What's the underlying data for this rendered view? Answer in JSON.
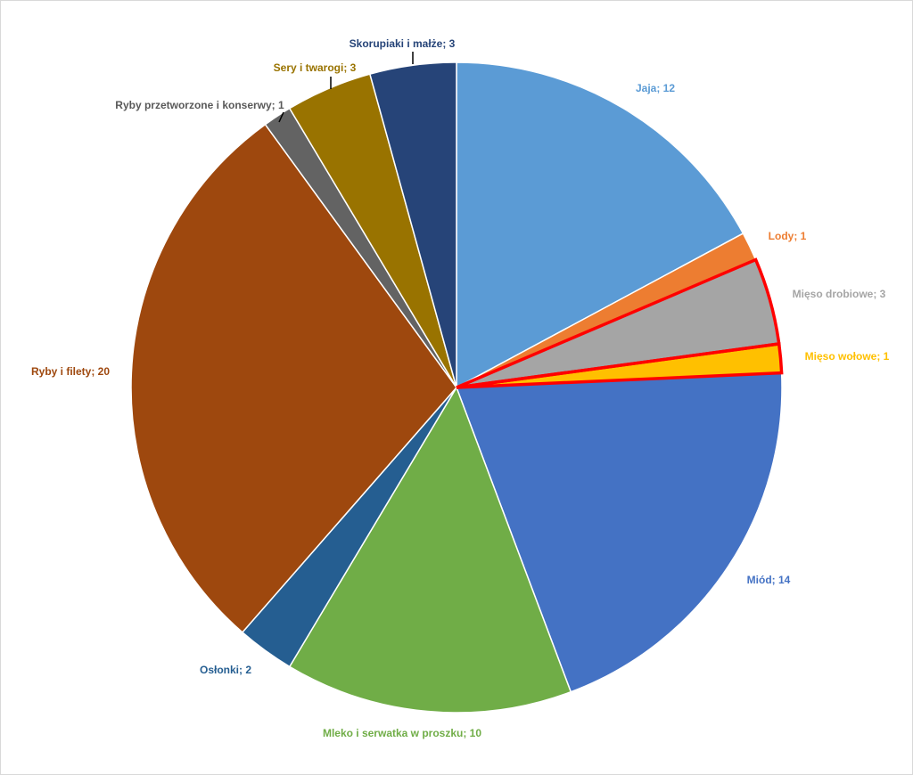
{
  "chart_data": {
    "type": "pie",
    "value_labels": [
      "Jaja; 12",
      "Lody; 1",
      "Mięso drobiowe; 3",
      "Mięso wołowe; 1",
      "Miód; 14",
      "Mleko i serwatka w proszku; 10",
      "Osłonki; 2",
      "Ryby i filety; 20",
      "Ryby przetworzone  i konserwy; 1",
      "Sery i twarogi; 3",
      "Skorupiaki i małże; 3"
    ],
    "values": [
      12,
      1,
      3,
      1,
      14,
      10,
      2,
      20,
      1,
      3,
      3
    ],
    "colors": [
      "#5b9bd5",
      "#ed7d31",
      "#a5a5a5",
      "#ffc000",
      "#4472c4",
      "#70ad47",
      "#255e91",
      "#9e480e",
      "#636363",
      "#997300",
      "#264478"
    ],
    "outlined": [
      false,
      false,
      true,
      true,
      false,
      false,
      false,
      false,
      false,
      false,
      false
    ],
    "outline_color": "#ff0000"
  }
}
